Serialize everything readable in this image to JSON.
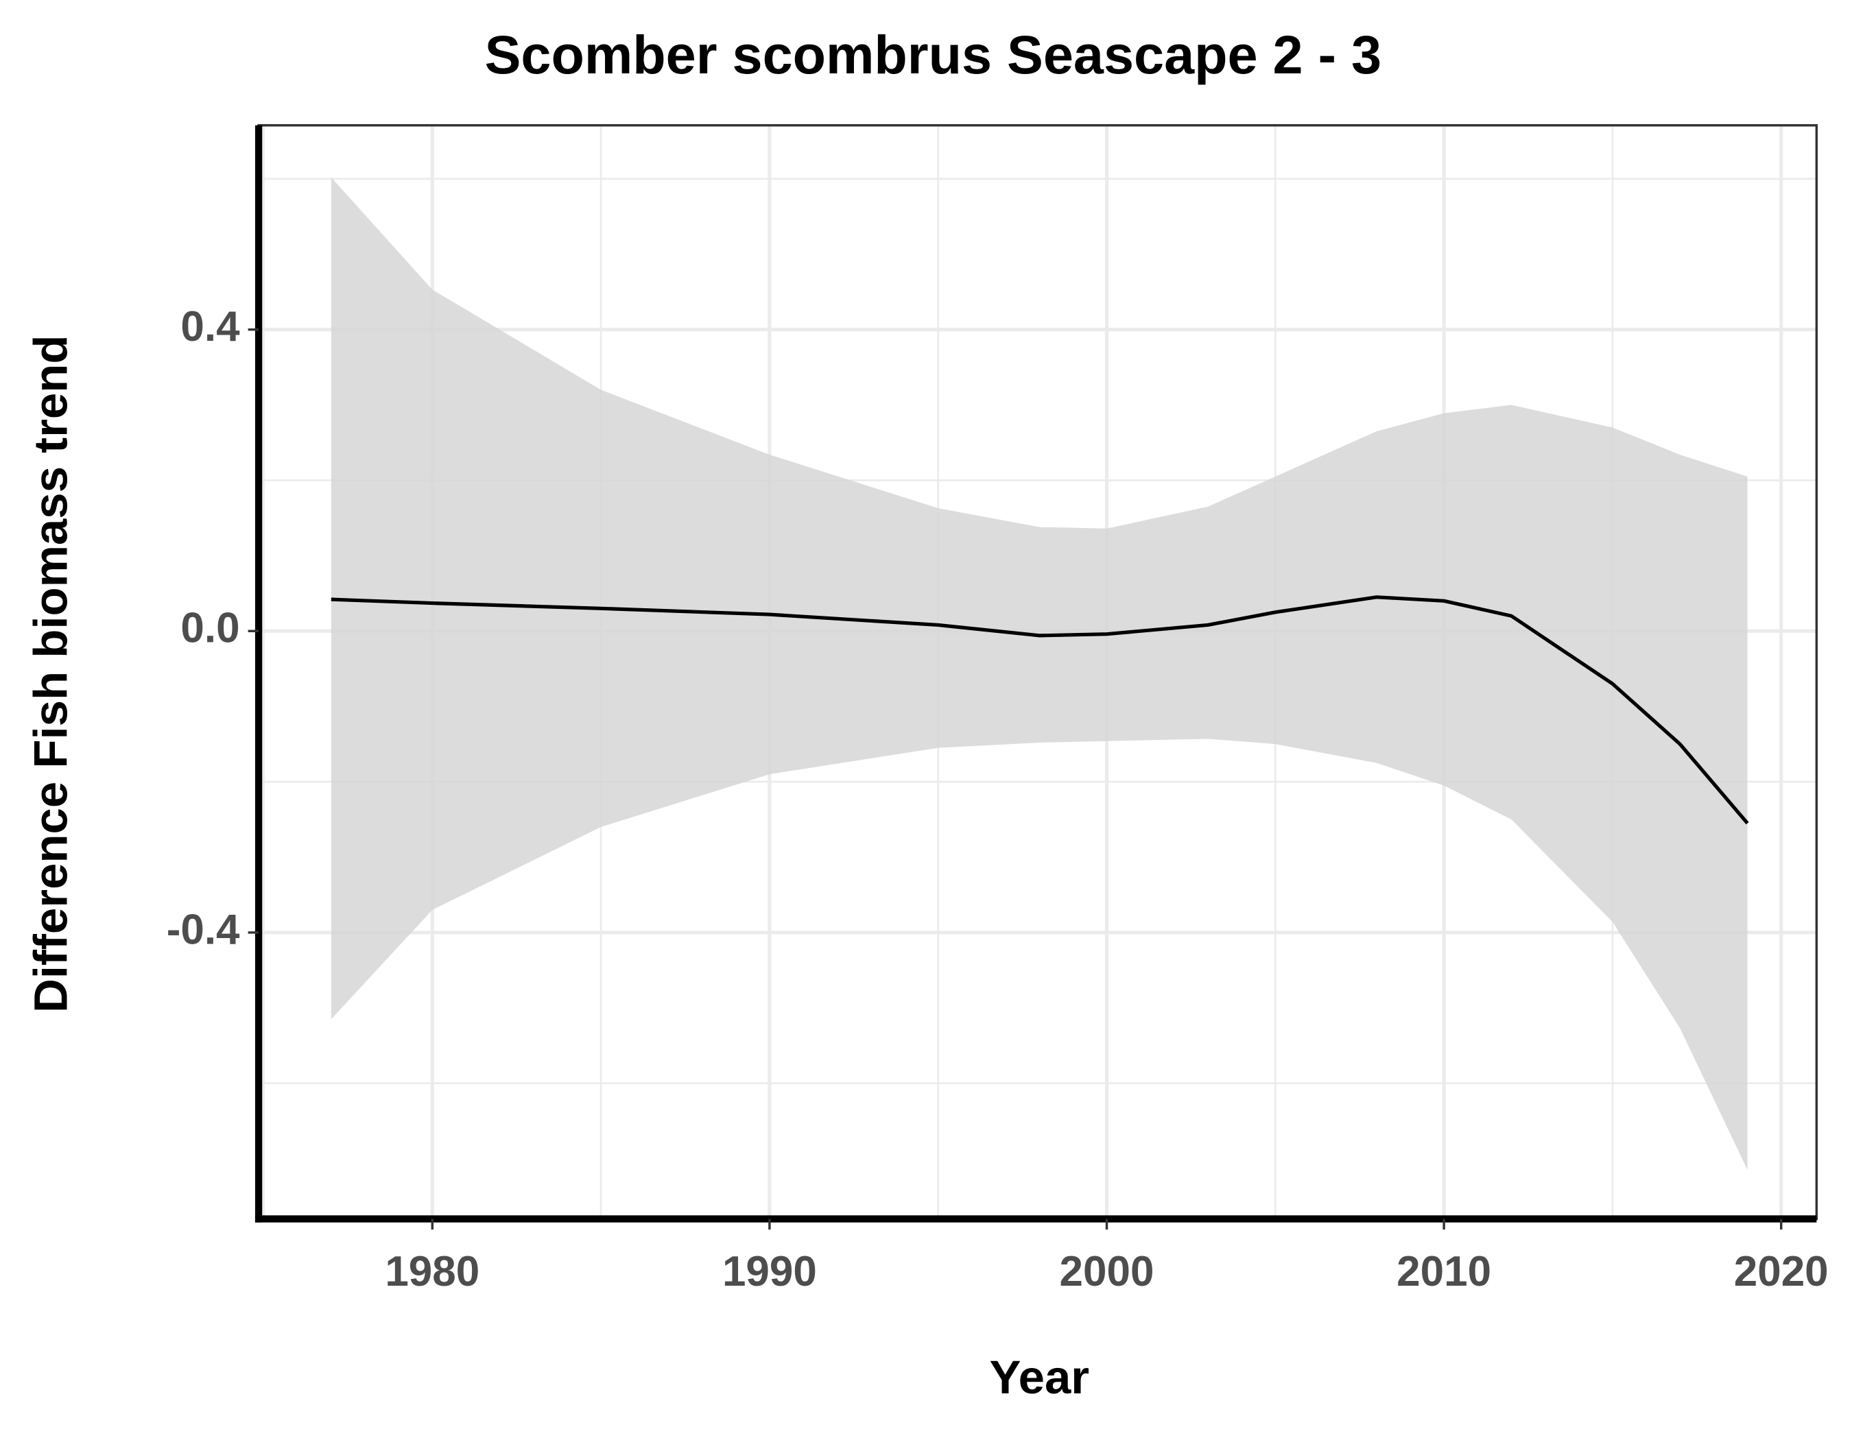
{
  "chart_data": {
    "type": "line",
    "title": "Scomber scombrus Seascape 2 - 3",
    "x_label": "Year",
    "y_label": "Difference Fish biomass trend",
    "x": [
      1977,
      1980,
      1985,
      1990,
      1995,
      1998,
      2000,
      2003,
      2005,
      2008,
      2010,
      2012,
      2015,
      2017,
      2019
    ],
    "series": [
      {
        "color": "#000000",
        "values": [
          0.042,
          0.037,
          0.03,
          0.022,
          0.008,
          -0.006,
          -0.004,
          0.008,
          0.025,
          0.045,
          0.04,
          0.02,
          -0.07,
          -0.15,
          -0.255
        ],
        "band_color": "#d6d6d6",
        "upper": [
          0.602,
          0.453,
          0.32,
          0.234,
          0.163,
          0.138,
          0.136,
          0.165,
          0.205,
          0.265,
          0.289,
          0.3,
          0.27,
          0.234,
          0.205
        ],
        "lower": [
          -0.515,
          -0.37,
          -0.26,
          -0.19,
          -0.155,
          -0.148,
          -0.146,
          -0.143,
          -0.15,
          -0.175,
          -0.205,
          -0.25,
          -0.386,
          -0.527,
          -0.715
        ]
      }
    ],
    "xlim": [
      1974.85,
      2021.05
    ],
    "ylim": [
      -0.78,
      0.671
    ],
    "xticks": [
      1980,
      1990,
      2000,
      2010,
      2020
    ],
    "yticks": [
      -0.4,
      {
        "value": 0,
        "label": "0.0"
      },
      0.4
    ],
    "x_minor_grid": [
      1975,
      1985,
      1995,
      2005,
      2015
    ],
    "y_minor_grid": [
      -0.6,
      -0.2,
      0.2,
      0.6
    ],
    "grid": true
  }
}
